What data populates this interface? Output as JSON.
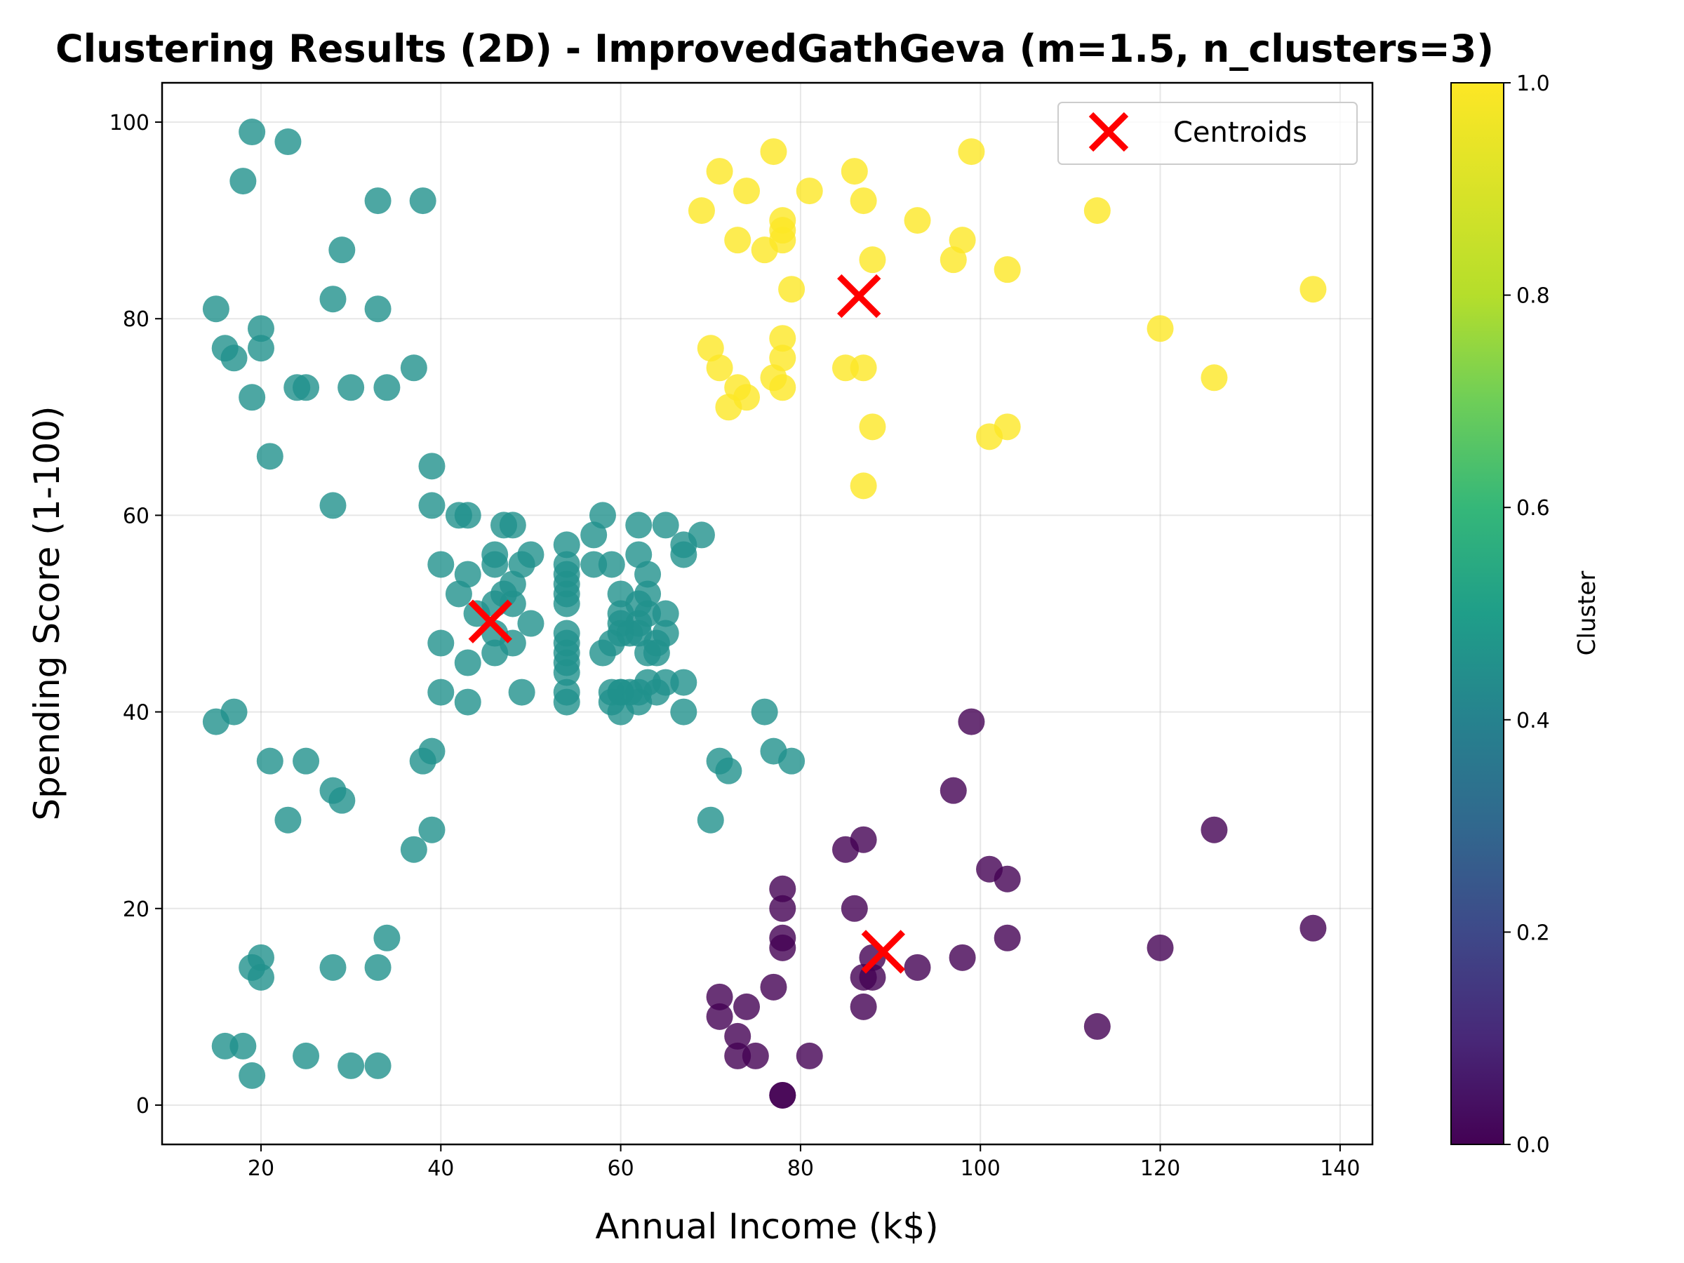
{
  "chart_data": {
    "type": "scatter",
    "title": "Clustering Results (2D) - ImprovedGathGeva (m=1.5, n_clusters=3)",
    "xlabel": "Annual Income (k$)",
    "ylabel": "Spending Score (1-100)",
    "xlim": [
      9,
      143.6
    ],
    "ylim": [
      -4,
      104
    ],
    "xticks": [
      "20",
      "40",
      "60",
      "80",
      "100",
      "120",
      "140"
    ],
    "yticks": [
      "0",
      "20",
      "40",
      "60",
      "80",
      "100"
    ],
    "grid": true,
    "legend": {
      "placement": "top-right",
      "entries": [
        "Centroids"
      ]
    },
    "colorbar": {
      "label": "Cluster",
      "colormap": "viridis",
      "range": [
        0.0,
        1.0
      ],
      "ticks": [
        "0.0",
        "0.2",
        "0.4",
        "0.6",
        "0.8",
        "1.0"
      ]
    },
    "colors": {
      "cluster_0": "#440154",
      "cluster_0_5": "#21918c",
      "cluster_1": "#fde725",
      "centroid": "#ff0000"
    },
    "centroids": [
      {
        "x": 45.5,
        "y": 49.2
      },
      {
        "x": 86.5,
        "y": 82.3
      },
      {
        "x": 89.2,
        "y": 15.6
      }
    ],
    "series": [
      {
        "cluster_value": 0.5,
        "points": [
          [
            19,
            99
          ],
          [
            23,
            98
          ],
          [
            18,
            94
          ],
          [
            33,
            92
          ],
          [
            38,
            92
          ],
          [
            29,
            87
          ],
          [
            28,
            82
          ],
          [
            15,
            81
          ],
          [
            33,
            81
          ],
          [
            20,
            79
          ],
          [
            16,
            77
          ],
          [
            20,
            77
          ],
          [
            17,
            76
          ],
          [
            37,
            75
          ],
          [
            24,
            73
          ],
          [
            25,
            73
          ],
          [
            30,
            73
          ],
          [
            34,
            73
          ],
          [
            19,
            72
          ],
          [
            21,
            66
          ],
          [
            39,
            65
          ],
          [
            28,
            61
          ],
          [
            39,
            61
          ],
          [
            43,
            60
          ],
          [
            42,
            60
          ],
          [
            48,
            59
          ],
          [
            47,
            59
          ],
          [
            58,
            60
          ],
          [
            62,
            59
          ],
          [
            65,
            59
          ],
          [
            69,
            58
          ],
          [
            57,
            58
          ],
          [
            54,
            57
          ],
          [
            67,
            57
          ],
          [
            50,
            56
          ],
          [
            62,
            56
          ],
          [
            46,
            56
          ],
          [
            67,
            56
          ],
          [
            40,
            55
          ],
          [
            46,
            55
          ],
          [
            49,
            55
          ],
          [
            54,
            55
          ],
          [
            57,
            55
          ],
          [
            59,
            55
          ],
          [
            63,
            54
          ],
          [
            43,
            54
          ],
          [
            54,
            54
          ],
          [
            48,
            53
          ],
          [
            54,
            53
          ],
          [
            42,
            52
          ],
          [
            47,
            52
          ],
          [
            60,
            52
          ],
          [
            63,
            52
          ],
          [
            54,
            52
          ],
          [
            46,
            51
          ],
          [
            48,
            51
          ],
          [
            54,
            51
          ],
          [
            62,
            51
          ],
          [
            44,
            50
          ],
          [
            60,
            50
          ],
          [
            63,
            50
          ],
          [
            65,
            50
          ],
          [
            50,
            49
          ],
          [
            60,
            49
          ],
          [
            62,
            49
          ],
          [
            46,
            48
          ],
          [
            54,
            48
          ],
          [
            60,
            48
          ],
          [
            61,
            48
          ],
          [
            62,
            48
          ],
          [
            65,
            48
          ],
          [
            64,
            47
          ],
          [
            48,
            47
          ],
          [
            40,
            47
          ],
          [
            54,
            47
          ],
          [
            59,
            47
          ],
          [
            46,
            46
          ],
          [
            54,
            46
          ],
          [
            58,
            46
          ],
          [
            63,
            46
          ],
          [
            64,
            46
          ],
          [
            43,
            45
          ],
          [
            54,
            45
          ],
          [
            54,
            44
          ],
          [
            63,
            43
          ],
          [
            65,
            43
          ],
          [
            67,
            43
          ],
          [
            60,
            42
          ],
          [
            49,
            42
          ],
          [
            40,
            42
          ],
          [
            54,
            42
          ],
          [
            59,
            42
          ],
          [
            60,
            42
          ],
          [
            61,
            42
          ],
          [
            62,
            42
          ],
          [
            64,
            42
          ],
          [
            43,
            41
          ],
          [
            54,
            41
          ],
          [
            59,
            41
          ],
          [
            62,
            41
          ],
          [
            60,
            40
          ],
          [
            17,
            40
          ],
          [
            67,
            40
          ],
          [
            76,
            40
          ],
          [
            15,
            39
          ],
          [
            39,
            36
          ],
          [
            77,
            36
          ],
          [
            21,
            35
          ],
          [
            25,
            35
          ],
          [
            38,
            35
          ],
          [
            71,
            35
          ],
          [
            79,
            35
          ],
          [
            72,
            34
          ],
          [
            28,
            32
          ],
          [
            29,
            31
          ],
          [
            23,
            29
          ],
          [
            70,
            29
          ],
          [
            39,
            28
          ],
          [
            37,
            26
          ],
          [
            34,
            17
          ],
          [
            20,
            15
          ],
          [
            19,
            14
          ],
          [
            28,
            14
          ],
          [
            33,
            14
          ],
          [
            20,
            13
          ],
          [
            16,
            6
          ],
          [
            18,
            6
          ],
          [
            25,
            5
          ],
          [
            30,
            4
          ],
          [
            33,
            4
          ],
          [
            19,
            3
          ]
        ]
      },
      {
        "cluster_value": 1.0,
        "points": [
          [
            77,
            97
          ],
          [
            99,
            97
          ],
          [
            71,
            95
          ],
          [
            86,
            95
          ],
          [
            74,
            93
          ],
          [
            81,
            93
          ],
          [
            87,
            92
          ],
          [
            69,
            91
          ],
          [
            113,
            91
          ],
          [
            78,
            90
          ],
          [
            93,
            90
          ],
          [
            78,
            89
          ],
          [
            78,
            88
          ],
          [
            73,
            88
          ],
          [
            98,
            88
          ],
          [
            76,
            87
          ],
          [
            88,
            86
          ],
          [
            97,
            86
          ],
          [
            103,
            85
          ],
          [
            79,
            83
          ],
          [
            137,
            83
          ],
          [
            120,
            79
          ],
          [
            78,
            78
          ],
          [
            70,
            77
          ],
          [
            78,
            76
          ],
          [
            71,
            75
          ],
          [
            85,
            75
          ],
          [
            87,
            75
          ],
          [
            126,
            74
          ],
          [
            77,
            74
          ],
          [
            73,
            73
          ],
          [
            78,
            73
          ],
          [
            74,
            72
          ],
          [
            72,
            71
          ],
          [
            88,
            69
          ],
          [
            103,
            69
          ],
          [
            101,
            68
          ],
          [
            87,
            63
          ]
        ]
      },
      {
        "cluster_value": 0.0,
        "points": [
          [
            99,
            39
          ],
          [
            97,
            32
          ],
          [
            126,
            28
          ],
          [
            87,
            27
          ],
          [
            85,
            26
          ],
          [
            101,
            24
          ],
          [
            103,
            23
          ],
          [
            78,
            22
          ],
          [
            78,
            20
          ],
          [
            86,
            20
          ],
          [
            78,
            17
          ],
          [
            103,
            17
          ],
          [
            78,
            16
          ],
          [
            120,
            16
          ],
          [
            137,
            18
          ],
          [
            88,
            15
          ],
          [
            98,
            15
          ],
          [
            93,
            14
          ],
          [
            87,
            13
          ],
          [
            88,
            13
          ],
          [
            77,
            12
          ],
          [
            71,
            11
          ],
          [
            74,
            10
          ],
          [
            87,
            10
          ],
          [
            71,
            9
          ],
          [
            113,
            8
          ],
          [
            73,
            7
          ],
          [
            73,
            5
          ],
          [
            75,
            5
          ],
          [
            81,
            5
          ],
          [
            78,
            1
          ],
          [
            78,
            1
          ]
        ]
      }
    ]
  }
}
